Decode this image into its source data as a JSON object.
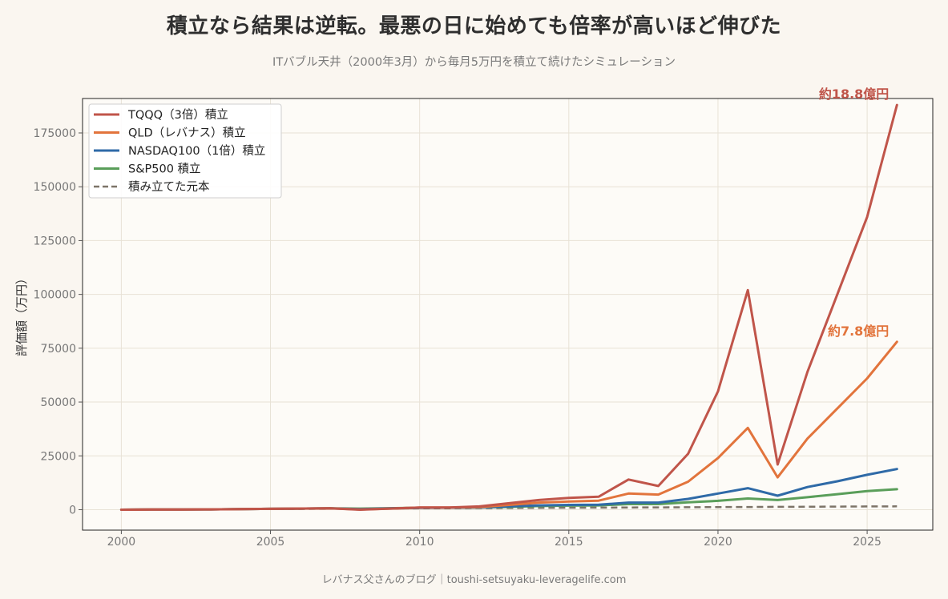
{
  "header": {
    "title": "積立なら結果は逆転。最悪の日に始めても倍率が高いほど伸びた",
    "subtitle": "ITバブル天井（2000年3月）から毎月5万円を積立て続けたシミュレーション"
  },
  "footer": {
    "credit": "レバナス父さんのブログ｜toushi-setsuyaku-leveragelife.com"
  },
  "chart_data": {
    "type": "line",
    "xlabel": "",
    "ylabel": "評価額（万円）",
    "xlim": [
      1998.7,
      2027.2
    ],
    "ylim": [
      -9500,
      191000
    ],
    "xticks": [
      2000,
      2005,
      2010,
      2015,
      2020,
      2025
    ],
    "yticks": [
      0,
      25000,
      50000,
      75000,
      100000,
      125000,
      150000,
      175000
    ],
    "grid": true,
    "legend_position": "top-left",
    "x": [
      2000,
      2001,
      2002,
      2003,
      2004,
      2005,
      2006,
      2007,
      2008,
      2009,
      2010,
      2011,
      2012,
      2013,
      2014,
      2015,
      2016,
      2017,
      2018,
      2019,
      2020,
      2021,
      2022,
      2023,
      2024,
      2025,
      2026
    ],
    "series": [
      {
        "name": "TQQQ（3倍）積立",
        "color": "#c0554a",
        "style": "solid",
        "values": [
          0,
          50,
          100,
          150,
          300,
          400,
          500,
          600,
          0,
          500,
          1000,
          1000,
          1500,
          3000,
          4500,
          5500,
          6000,
          14000,
          11000,
          26000,
          55000,
          102000,
          21000,
          64000,
          100000,
          136000,
          188000
        ]
      },
      {
        "name": "QLD（レバナス）積立",
        "color": "#e2743c",
        "style": "solid",
        "values": [
          0,
          50,
          100,
          150,
          300,
          400,
          500,
          600,
          100,
          500,
          1000,
          1000,
          1200,
          2200,
          3300,
          3800,
          4200,
          7500,
          7000,
          13000,
          24000,
          38000,
          15000,
          33000,
          47000,
          61000,
          78000
        ]
      },
      {
        "name": "NASDAQ100（1倍）積立",
        "color": "#2f6aa7",
        "style": "solid",
        "values": [
          0,
          50,
          100,
          150,
          300,
          400,
          500,
          600,
          300,
          600,
          800,
          900,
          1000,
          1500,
          2000,
          2200,
          2300,
          3300,
          3300,
          5000,
          7500,
          10000,
          6500,
          10500,
          13200,
          16200,
          18900
        ]
      },
      {
        "name": "S&P500 積立",
        "color": "#5a9e5a",
        "style": "solid",
        "values": [
          0,
          50,
          100,
          150,
          300,
          400,
          500,
          600,
          500,
          700,
          900,
          900,
          1000,
          1300,
          1700,
          1900,
          2000,
          2600,
          2600,
          3400,
          4100,
          5200,
          4500,
          5800,
          7200,
          8600,
          9500
        ]
      },
      {
        "name": "積み立てた元本",
        "color": "#7d7468",
        "style": "dashed",
        "values": [
          0,
          60,
          120,
          180,
          240,
          300,
          360,
          420,
          480,
          540,
          600,
          660,
          720,
          780,
          840,
          900,
          960,
          1020,
          1080,
          1140,
          1200,
          1260,
          1320,
          1380,
          1440,
          1500,
          1560
        ]
      }
    ],
    "annotations": [
      {
        "text": "約18.8億円",
        "series": 0,
        "color": "#c0554a"
      },
      {
        "text": "約7.8億円",
        "series": 1,
        "color": "#e2743c"
      }
    ]
  }
}
